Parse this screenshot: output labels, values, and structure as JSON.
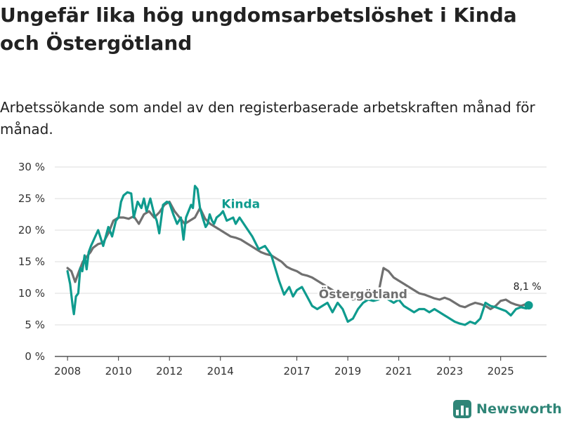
{
  "title": "Ungefär lika hög ungdomsarbetslöshet i Kinda och Östergötland",
  "subtitle": "Arbetssökande som andel av den registerbaserade arbetskraften månad för månad.",
  "brand": {
    "name": "Newsworthy",
    "icon": "newsworthy-logo-icon",
    "color": "#2f8577"
  },
  "chart_data": {
    "type": "line",
    "title": "Ungefär lika hög ungdomsarbetslöshet i Kinda och Östergötland",
    "xlabel": "",
    "ylabel": "",
    "ylim": [
      0,
      30
    ],
    "y_ticks": [
      0,
      5,
      10,
      15,
      20,
      25,
      30
    ],
    "y_tick_labels": [
      "0 %",
      "5 %",
      "10 %",
      "15 %",
      "20 %",
      "25 %",
      "30 %"
    ],
    "xlim": [
      2007.5,
      2026.8
    ],
    "x_ticks": [
      2008,
      2010,
      2012,
      2014,
      2017,
      2019,
      2021,
      2023,
      2025
    ],
    "x_tick_labels": [
      "2008",
      "2010",
      "2012",
      "2014",
      "2017",
      "2019",
      "2021",
      "2023",
      "2025"
    ],
    "grid": true,
    "series": [
      {
        "name": "Kinda",
        "label": "Kinda",
        "color": "#0f9b8e",
        "x": [
          2008.0,
          2008.1,
          2008.2,
          2008.25,
          2008.33,
          2008.42,
          2008.5,
          2008.58,
          2008.67,
          2008.75,
          2008.83,
          2008.92,
          2009.0,
          2009.2,
          2009.4,
          2009.6,
          2009.75,
          2009.9,
          2010.0,
          2010.1,
          2010.2,
          2010.35,
          2010.5,
          2010.6,
          2010.75,
          2010.9,
          2011.0,
          2011.1,
          2011.25,
          2011.4,
          2011.5,
          2011.6,
          2011.75,
          2011.9,
          2012.0,
          2012.15,
          2012.3,
          2012.45,
          2012.55,
          2012.65,
          2012.75,
          2012.85,
          2012.92,
          2013.0,
          2013.1,
          2013.2,
          2013.3,
          2013.42,
          2013.5,
          2013.58,
          2013.67,
          2013.75,
          2013.85,
          2014.0,
          2014.1,
          2014.25,
          2014.5,
          2014.6,
          2014.75,
          2015.0,
          2015.25,
          2015.5,
          2015.75,
          2016.0,
          2016.3,
          2016.5,
          2016.7,
          2016.85,
          2017.0,
          2017.2,
          2017.4,
          2017.6,
          2017.8,
          2018.0,
          2018.2,
          2018.4,
          2018.6,
          2018.8,
          2019.0,
          2019.2,
          2019.4,
          2019.6,
          2019.8,
          2020.0,
          2020.2,
          2020.4,
          2020.6,
          2020.8,
          2021.0,
          2021.2,
          2021.4,
          2021.6,
          2021.8,
          2022.0,
          2022.2,
          2022.4,
          2022.6,
          2022.8,
          2023.0,
          2023.2,
          2023.4,
          2023.6,
          2023.8,
          2024.0,
          2024.2,
          2024.4,
          2024.6,
          2024.8,
          2025.0,
          2025.2,
          2025.4,
          2025.6,
          2025.8,
          2026.0,
          2026.1
        ],
        "values": [
          13.5,
          11.5,
          8.0,
          6.7,
          9.5,
          10.0,
          14.0,
          13.5,
          16.0,
          13.8,
          16.5,
          17.5,
          18.2,
          20.0,
          17.5,
          20.5,
          19.0,
          21.5,
          22.0,
          24.5,
          25.5,
          26.0,
          25.8,
          22.0,
          24.5,
          23.5,
          25.0,
          23.0,
          25.0,
          22.5,
          21.5,
          19.5,
          24.0,
          24.5,
          24.3,
          22.5,
          21.0,
          22.0,
          18.5,
          22.0,
          23.0,
          24.0,
          23.5,
          27.0,
          26.5,
          23.5,
          22.0,
          20.5,
          21.0,
          22.5,
          21.5,
          21.0,
          22.0,
          22.5,
          23.0,
          21.5,
          22.0,
          21.0,
          22.0,
          20.5,
          19.0,
          17.0,
          17.5,
          16.0,
          12.0,
          9.8,
          11.0,
          9.5,
          10.5,
          11.0,
          9.5,
          8.0,
          7.5,
          8.0,
          8.5,
          7.0,
          8.5,
          7.5,
          5.5,
          6.0,
          7.5,
          8.5,
          9.0,
          8.8,
          9.0,
          9.5,
          9.0,
          8.5,
          9.0,
          8.0,
          7.5,
          7.0,
          7.5,
          7.5,
          7.0,
          7.5,
          7.0,
          6.5,
          6.0,
          5.5,
          5.2,
          5.0,
          5.5,
          5.2,
          6.0,
          8.5,
          8.0,
          7.8,
          7.5,
          7.2,
          6.5,
          7.5,
          7.8,
          7.6,
          8.1
        ],
        "end_label": "8,1 %"
      },
      {
        "name": "Östergötland",
        "label": "Östergötland",
        "color": "#707070",
        "x": [
          2008.0,
          2008.15,
          2008.3,
          2008.45,
          2008.6,
          2008.75,
          2008.9,
          2009.0,
          2009.2,
          2009.4,
          2009.6,
          2009.8,
          2010.0,
          2010.2,
          2010.4,
          2010.6,
          2010.8,
          2011.0,
          2011.2,
          2011.4,
          2011.6,
          2011.8,
          2012.0,
          2012.2,
          2012.4,
          2012.6,
          2012.8,
          2013.0,
          2013.2,
          2013.4,
          2013.6,
          2013.8,
          2014.0,
          2014.2,
          2014.4,
          2014.6,
          2014.8,
          2015.0,
          2015.2,
          2015.4,
          2015.6,
          2015.8,
          2016.0,
          2016.2,
          2016.4,
          2016.6,
          2016.8,
          2017.0,
          2017.2,
          2017.4,
          2017.6,
          2017.8,
          2018.0,
          2018.2,
          2018.4,
          2018.6,
          2018.8,
          2019.0,
          2019.2,
          2019.4,
          2019.6,
          2019.8,
          2020.0,
          2020.2,
          2020.4,
          2020.6,
          2020.8,
          2021.0,
          2021.2,
          2021.4,
          2021.6,
          2021.8,
          2022.0,
          2022.2,
          2022.4,
          2022.6,
          2022.8,
          2023.0,
          2023.2,
          2023.4,
          2023.6,
          2023.8,
          2024.0,
          2024.2,
          2024.4,
          2024.6,
          2024.8,
          2025.0,
          2025.2,
          2025.4,
          2025.6,
          2025.8,
          2026.0
        ],
        "values": [
          14.0,
          13.5,
          11.8,
          13.5,
          15.0,
          15.8,
          16.5,
          17.2,
          17.8,
          18.0,
          19.5,
          21.5,
          22.0,
          22.0,
          21.8,
          22.2,
          21.0,
          22.5,
          23.0,
          22.0,
          22.8,
          24.0,
          24.5,
          23.0,
          22.0,
          21.0,
          21.5,
          22.0,
          23.5,
          21.8,
          21.0,
          20.5,
          20.0,
          19.5,
          19.0,
          18.8,
          18.5,
          18.0,
          17.5,
          17.0,
          16.5,
          16.2,
          16.0,
          15.5,
          15.0,
          14.2,
          13.8,
          13.5,
          13.0,
          12.8,
          12.5,
          12.0,
          11.5,
          11.0,
          10.5,
          10.0,
          9.8,
          9.5,
          9.0,
          9.2,
          9.0,
          9.5,
          9.8,
          10.0,
          14.0,
          13.5,
          12.5,
          12.0,
          11.5,
          11.0,
          10.5,
          10.0,
          9.8,
          9.5,
          9.2,
          9.0,
          9.3,
          9.0,
          8.5,
          8.0,
          7.8,
          8.2,
          8.5,
          8.3,
          8.0,
          7.5,
          8.0,
          8.8,
          9.0,
          8.5,
          8.2,
          8.0,
          8.3
        ]
      }
    ],
    "annotations": [
      {
        "text": "Kinda",
        "series": "Kinda"
      },
      {
        "text": "Östergötland",
        "series": "Östergötland"
      },
      {
        "text": "8,1 %",
        "series": "Kinda",
        "at": "last-point"
      }
    ]
  }
}
